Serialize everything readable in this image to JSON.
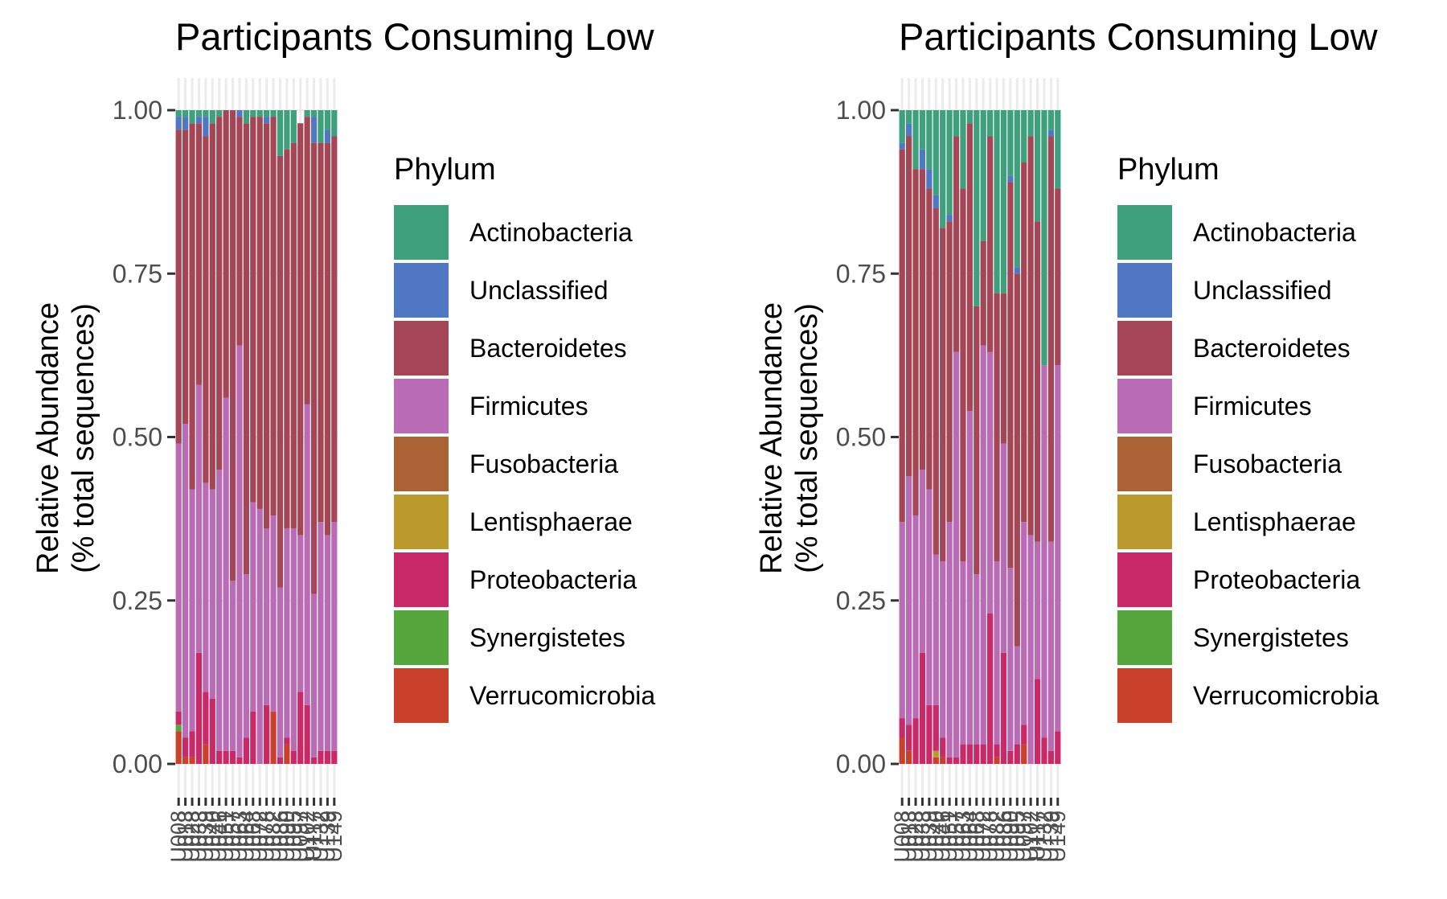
{
  "phyla": [
    {
      "name": "Actinobacteria",
      "color": "#3fa07e"
    },
    {
      "name": "Unclassified",
      "color": "#5077c3"
    },
    {
      "name": "Bacteroidetes",
      "color": "#a54656"
    },
    {
      "name": "Firmicutes",
      "color": "#b96bb6"
    },
    {
      "name": "Fusobacteria",
      "color": "#ab6234"
    },
    {
      "name": "Lentisphaerae",
      "color": "#bb9a2d"
    },
    {
      "name": "Proteobacteria",
      "color": "#c92a67"
    },
    {
      "name": "Synergistetes",
      "color": "#55a63c"
    },
    {
      "name": "Verrucomicrobia",
      "color": "#c9402b"
    }
  ],
  "chart_data": [
    {
      "type": "bar",
      "stacked": true,
      "title": "Participants Consuming Low",
      "ylabel": [
        "Relative Abundance",
        "(% total sequences)"
      ],
      "legend_title": "Phylum",
      "legend_position": "right",
      "ylim": [
        0,
        1
      ],
      "yticks": [
        "0.00",
        "0.25",
        "0.50",
        "0.75",
        "1.00"
      ],
      "ytick_values": [
        0,
        0.25,
        0.5,
        0.75,
        1
      ],
      "grid": true,
      "categories": [
        "U008",
        "U013",
        "U028",
        "U033",
        "U039",
        "U040",
        "U046",
        "U051",
        "U057",
        "U063",
        "U064",
        "U068",
        "U072",
        "U078",
        "U082",
        "U086",
        "U090",
        "U095",
        "U097",
        "U102",
        "U117",
        "U132",
        "U139",
        "U149"
      ],
      "series": [
        {
          "name": "Verrucomicrobia",
          "values": [
            0.05,
            0.01,
            0.01,
            0.0,
            0.03,
            0.0,
            0.0,
            0.0,
            0.0,
            0.0,
            0.0,
            0.0,
            0.0,
            0.0,
            0.08,
            0.0,
            0.03,
            0.0,
            0.0,
            0.0,
            0.0,
            0.0,
            0.0,
            0.0
          ]
        },
        {
          "name": "Synergistetes",
          "values": [
            0.01,
            0.0,
            0.0,
            0.0,
            0.0,
            0.0,
            0.0,
            0.0,
            0.0,
            0.0,
            0.0,
            0.0,
            0.0,
            0.0,
            0.0,
            0.0,
            0.0,
            0.0,
            0.0,
            0.0,
            0.0,
            0.0,
            0.0,
            0.0
          ]
        },
        {
          "name": "Lentisphaerae",
          "values": [
            0.0,
            0.0,
            0.0,
            0.0,
            0.0,
            0.0,
            0.0,
            0.0,
            0.0,
            0.0,
            0.0,
            0.0,
            0.0,
            0.0,
            0.0,
            0.0,
            0.0,
            0.0,
            0.0,
            0.0,
            0.0,
            0.0,
            0.0,
            0.0
          ]
        },
        {
          "name": "Proteobacteria",
          "values": [
            0.02,
            0.03,
            0.04,
            0.17,
            0.08,
            0.1,
            0.02,
            0.02,
            0.02,
            0.01,
            0.04,
            0.08,
            0.0,
            0.09,
            0.0,
            0.01,
            0.01,
            0.02,
            0.11,
            0.09,
            0.01,
            0.02,
            0.02,
            0.02
          ]
        },
        {
          "name": "Fusobacteria",
          "values": [
            0.0,
            0.0,
            0.0,
            0.0,
            0.0,
            0.0,
            0.0,
            0.0,
            0.0,
            0.0,
            0.0,
            0.0,
            0.0,
            0.0,
            0.0,
            0.0,
            0.0,
            0.0,
            0.0,
            0.0,
            0.0,
            0.0,
            0.0,
            0.0
          ]
        },
        {
          "name": "Firmicutes",
          "values": [
            0.41,
            0.48,
            0.37,
            0.41,
            0.32,
            0.32,
            0.43,
            0.54,
            0.26,
            0.63,
            0.25,
            0.32,
            0.39,
            0.27,
            0.3,
            0.26,
            0.32,
            0.34,
            0.24,
            0.46,
            0.25,
            0.35,
            0.33,
            0.35
          ]
        },
        {
          "name": "Bacteroidetes",
          "values": [
            0.48,
            0.45,
            0.56,
            0.4,
            0.53,
            0.56,
            0.54,
            0.44,
            0.72,
            0.35,
            0.69,
            0.59,
            0.6,
            0.62,
            0.61,
            0.66,
            0.58,
            0.59,
            0.63,
            0.44,
            0.69,
            0.58,
            0.6,
            0.59
          ]
        },
        {
          "name": "Unclassified",
          "values": [
            0.02,
            0.02,
            0.0,
            0.01,
            0.03,
            0.0,
            0.0,
            0.0,
            0.0,
            0.01,
            0.0,
            0.0,
            0.0,
            0.01,
            0.0,
            0.0,
            0.0,
            0.0,
            0.0,
            0.0,
            0.04,
            0.0,
            0.02,
            0.0
          ]
        },
        {
          "name": "Actinobacteria",
          "values": [
            0.01,
            0.01,
            0.02,
            0.01,
            0.01,
            0.02,
            0.01,
            0.0,
            0.0,
            0.0,
            0.02,
            0.01,
            0.01,
            0.01,
            0.01,
            0.07,
            0.06,
            0.05,
            0.0,
            0.01,
            0.01,
            0.05,
            0.03,
            0.04
          ]
        }
      ]
    },
    {
      "type": "bar",
      "stacked": true,
      "title": "Participants Consuming Low",
      "ylabel": [
        "Relative Abundance",
        "(% total sequences)"
      ],
      "legend_title": "Phylum",
      "legend_position": "right",
      "ylim": [
        0,
        1
      ],
      "yticks": [
        "0.00",
        "0.25",
        "0.50",
        "0.75",
        "1.00"
      ],
      "ytick_values": [
        0,
        0.25,
        0.5,
        0.75,
        1
      ],
      "grid": true,
      "categories": [
        "U008",
        "U013",
        "U028",
        "U033",
        "U039",
        "U040",
        "U046",
        "U051",
        "U057",
        "U063",
        "U064",
        "U068",
        "U072",
        "U078",
        "U082",
        "U086",
        "U090",
        "U095",
        "U097",
        "U102",
        "U117",
        "U132",
        "U139",
        "U149"
      ],
      "series": [
        {
          "name": "Verrucomicrobia",
          "values": [
            0.04,
            0.02,
            0.0,
            0.0,
            0.0,
            0.01,
            0.01,
            0.0,
            0.0,
            0.0,
            0.0,
            0.0,
            0.0,
            0.0,
            0.01,
            0.0,
            0.0,
            0.0,
            0.03,
            0.0,
            0.0,
            0.0,
            0.0,
            0.0
          ]
        },
        {
          "name": "Synergistetes",
          "values": [
            0.0,
            0.0,
            0.0,
            0.0,
            0.0,
            0.0,
            0.0,
            0.0,
            0.0,
            0.0,
            0.0,
            0.0,
            0.0,
            0.0,
            0.0,
            0.0,
            0.0,
            0.0,
            0.0,
            0.0,
            0.0,
            0.0,
            0.0,
            0.0
          ]
        },
        {
          "name": "Lentisphaerae",
          "values": [
            0.0,
            0.0,
            0.0,
            0.0,
            0.0,
            0.01,
            0.0,
            0.0,
            0.0,
            0.0,
            0.0,
            0.0,
            0.0,
            0.0,
            0.0,
            0.0,
            0.0,
            0.0,
            0.0,
            0.0,
            0.0,
            0.0,
            0.0,
            0.0
          ]
        },
        {
          "name": "Proteobacteria",
          "values": [
            0.03,
            0.04,
            0.07,
            0.17,
            0.09,
            0.07,
            0.03,
            0.01,
            0.01,
            0.03,
            0.03,
            0.03,
            0.03,
            0.23,
            0.02,
            0.17,
            0.02,
            0.03,
            0.03,
            0.0,
            0.13,
            0.04,
            0.02,
            0.05
          ]
        },
        {
          "name": "Fusobacteria",
          "values": [
            0.0,
            0.0,
            0.0,
            0.0,
            0.0,
            0.0,
            0.0,
            0.0,
            0.0,
            0.0,
            0.0,
            0.0,
            0.0,
            0.0,
            0.0,
            0.0,
            0.0,
            0.0,
            0.0,
            0.0,
            0.0,
            0.0,
            0.0,
            0.0
          ]
        },
        {
          "name": "Firmicutes",
          "values": [
            0.3,
            0.38,
            0.31,
            0.28,
            0.33,
            0.23,
            0.27,
            0.36,
            0.62,
            0.28,
            0.51,
            0.26,
            0.61,
            0.4,
            0.28,
            0.32,
            0.28,
            0.15,
            0.31,
            0.35,
            0.21,
            0.57,
            0.32,
            0.56
          ]
        },
        {
          "name": "Bacteroidetes",
          "values": [
            0.57,
            0.52,
            0.53,
            0.46,
            0.46,
            0.53,
            0.51,
            0.46,
            0.33,
            0.57,
            0.44,
            0.41,
            0.16,
            0.33,
            0.41,
            0.23,
            0.59,
            0.57,
            0.55,
            0.61,
            0.49,
            0.0,
            0.62,
            0.27
          ]
        },
        {
          "name": "Unclassified",
          "values": [
            0.01,
            0.02,
            0.0,
            0.03,
            0.03,
            0.02,
            0.0,
            0.01,
            0.0,
            0.0,
            0.0,
            0.0,
            0.0,
            0.0,
            0.0,
            0.0,
            0.01,
            0.01,
            0.0,
            0.0,
            0.0,
            0.0,
            0.01,
            0.0
          ]
        },
        {
          "name": "Actinobacteria",
          "values": [
            0.05,
            0.02,
            0.09,
            0.06,
            0.09,
            0.13,
            0.18,
            0.16,
            0.04,
            0.12,
            0.02,
            0.3,
            0.2,
            0.04,
            0.28,
            0.28,
            0.1,
            0.24,
            0.08,
            0.04,
            0.17,
            0.39,
            0.03,
            0.12
          ]
        }
      ]
    }
  ]
}
